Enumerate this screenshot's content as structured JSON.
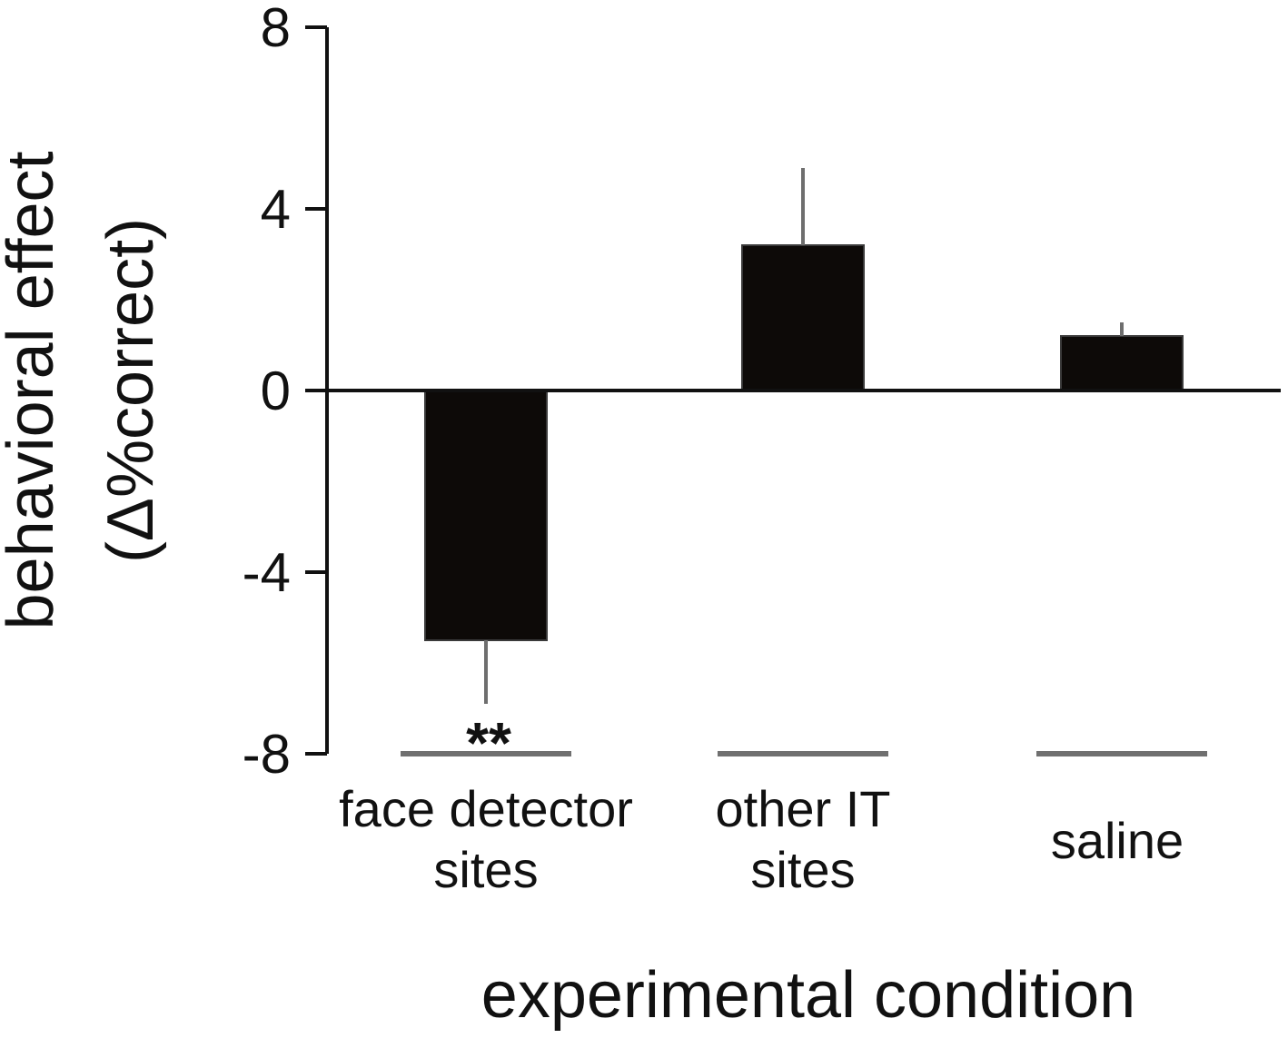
{
  "chart_data": {
    "type": "bar",
    "categories": [
      [
        "face detector",
        "sites"
      ],
      [
        "other IT",
        "sites"
      ],
      [
        "saline"
      ]
    ],
    "values": [
      -5.5,
      3.2,
      1.2
    ],
    "error_upper": [
      -5.5,
      4.9,
      1.5
    ],
    "error_lower": [
      -6.9,
      3.2,
      1.2
    ],
    "significance": [
      "**",
      "",
      ""
    ],
    "ylabel_lines": [
      "behavioral effect",
      "(Δ%correct)"
    ],
    "xlabel": "experimental condition",
    "yticks": [
      8,
      4,
      0,
      -4,
      -8
    ],
    "ylim": [
      -8,
      8
    ],
    "grid": false,
    "colors": {
      "bar": "#0d0a08",
      "axis": "#111111",
      "error": "#6e6e6e",
      "baseline_segments": "#707070"
    }
  }
}
